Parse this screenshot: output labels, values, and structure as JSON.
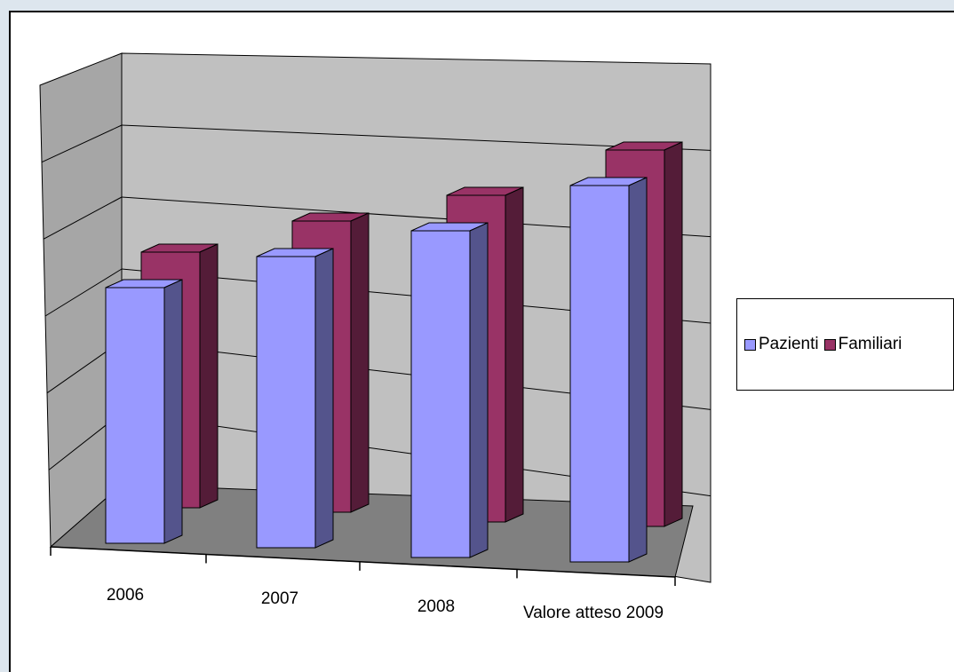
{
  "chart_data": {
    "type": "bar",
    "categories": [
      "2006",
      "2007",
      "2008",
      "Valore atteso 2009"
    ],
    "series": [
      {
        "name": "Pazienti",
        "values": [
          3.6,
          4.1,
          4.6,
          5.3
        ],
        "color": "#9999ff"
      },
      {
        "name": "Familiari",
        "values": [
          3.6,
          4.1,
          4.6,
          5.3
        ],
        "color": "#993366"
      }
    ],
    "ylim": [
      0,
      6
    ],
    "grid": true,
    "legend": "right",
    "style": "3d clustered column"
  }
}
